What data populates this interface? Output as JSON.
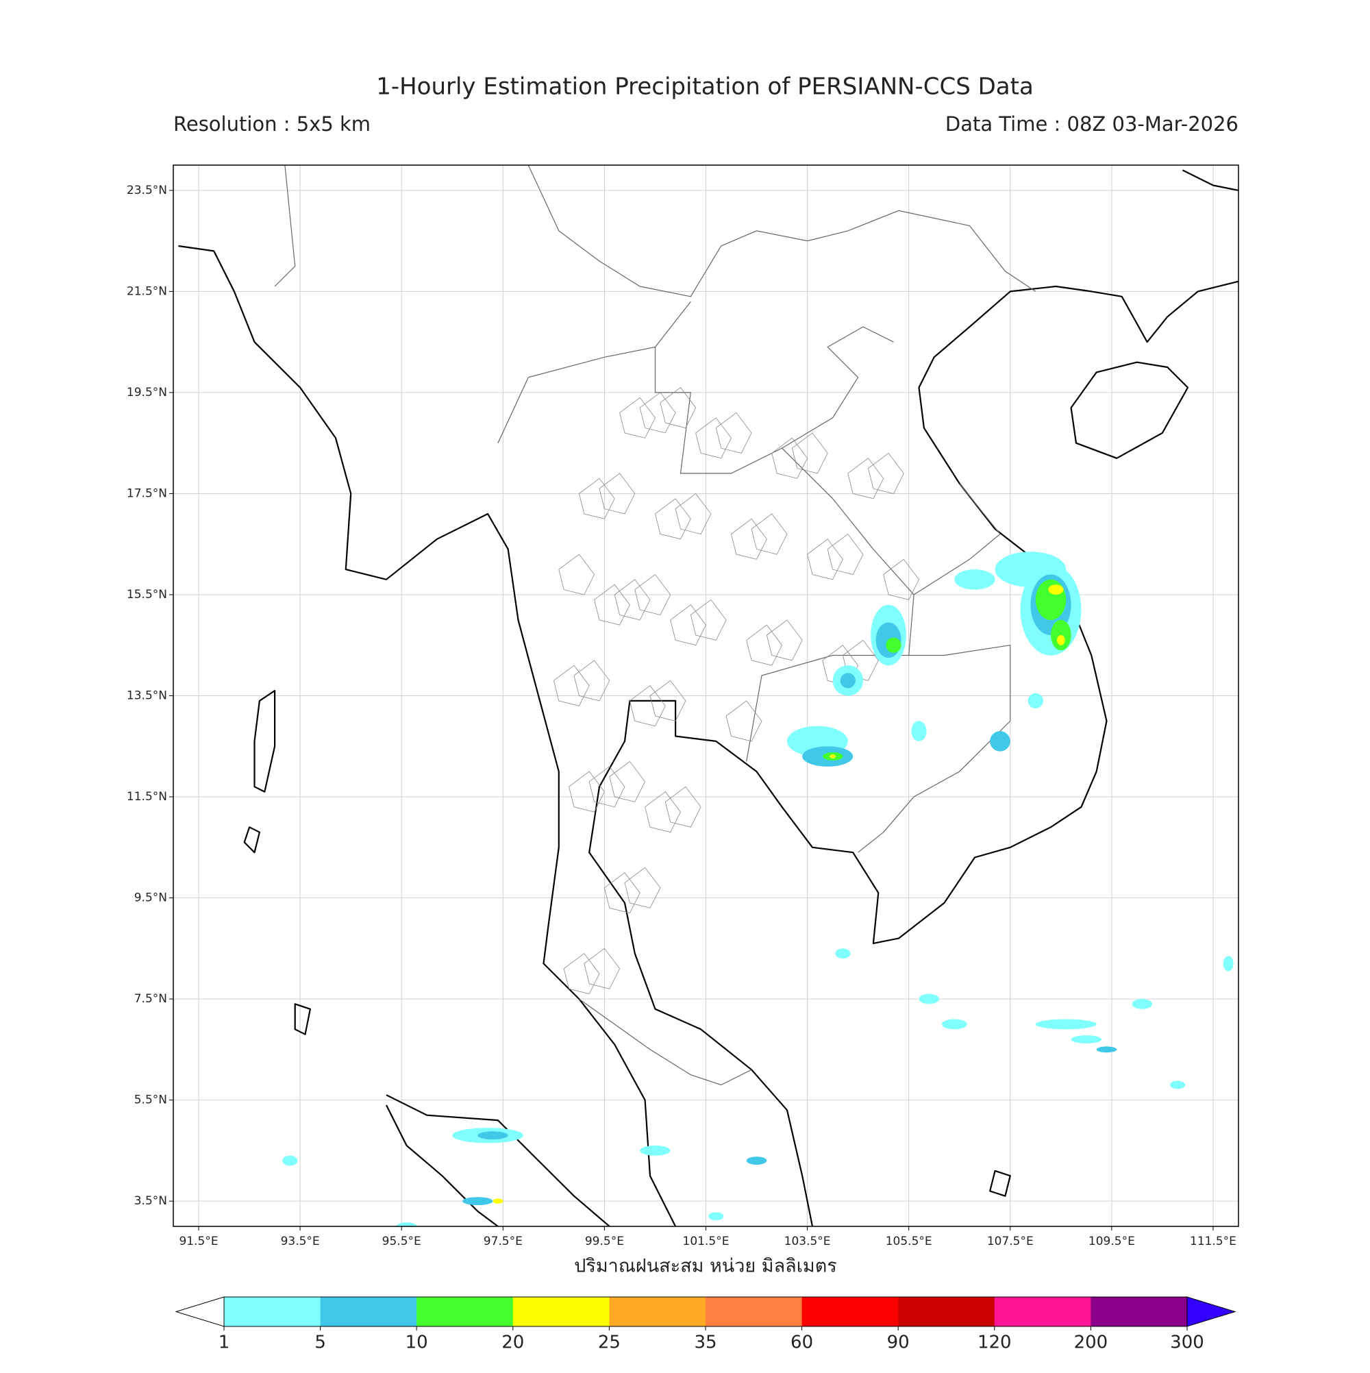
{
  "map": {
    "title": "1-Hourly Estimation Precipitation of PERSIANN-CCS Data",
    "subtitle_left": "Resolution : 5x5 km",
    "subtitle_right": "Data Time : 08Z 03-Mar-2026",
    "xlabel": "ปริมาณฝนสะสม หน่วย มิลลิเมตร",
    "xlim": [
      91,
      112
    ],
    "ylim": [
      3,
      24
    ],
    "xticks": [
      {
        "value": 91.5,
        "label": "91.5°E"
      },
      {
        "value": 93.5,
        "label": "93.5°E"
      },
      {
        "value": 95.5,
        "label": "95.5°E"
      },
      {
        "value": 97.5,
        "label": "97.5°E"
      },
      {
        "value": 99.5,
        "label": "99.5°E"
      },
      {
        "value": 101.5,
        "label": "101.5°E"
      },
      {
        "value": 103.5,
        "label": "103.5°E"
      },
      {
        "value": 105.5,
        "label": "105.5°E"
      },
      {
        "value": 107.5,
        "label": "107.5°E"
      },
      {
        "value": 109.5,
        "label": "109.5°E"
      },
      {
        "value": 111.5,
        "label": "111.5°E"
      }
    ],
    "yticks": [
      {
        "value": 23.5,
        "label": "23.5°N"
      },
      {
        "value": 21.5,
        "label": "21.5°N"
      },
      {
        "value": 19.5,
        "label": "19.5°N"
      },
      {
        "value": 17.5,
        "label": "17.5°N"
      },
      {
        "value": 15.5,
        "label": "15.5°N"
      },
      {
        "value": 13.5,
        "label": "13.5°N"
      },
      {
        "value": 11.5,
        "label": "11.5°N"
      },
      {
        "value": 9.5,
        "label": "9.5°N"
      },
      {
        "value": 7.5,
        "label": "7.5°N"
      },
      {
        "value": 5.5,
        "label": "5.5°N"
      },
      {
        "value": 3.5,
        "label": "3.5°N"
      }
    ],
    "grid": true
  },
  "colorbar": {
    "levels": [
      1,
      5,
      10,
      20,
      25,
      35,
      60,
      90,
      120,
      200,
      300
    ],
    "colors": [
      "#80ffff",
      "#40c8e8",
      "#44ff2e",
      "#ffff00",
      "#ffaa22",
      "#ff8040",
      "#ff0000",
      "#cc0000",
      "#ff1493",
      "#8b008b"
    ],
    "under_color": "#ffffff",
    "over_color": "#3300ff"
  }
}
